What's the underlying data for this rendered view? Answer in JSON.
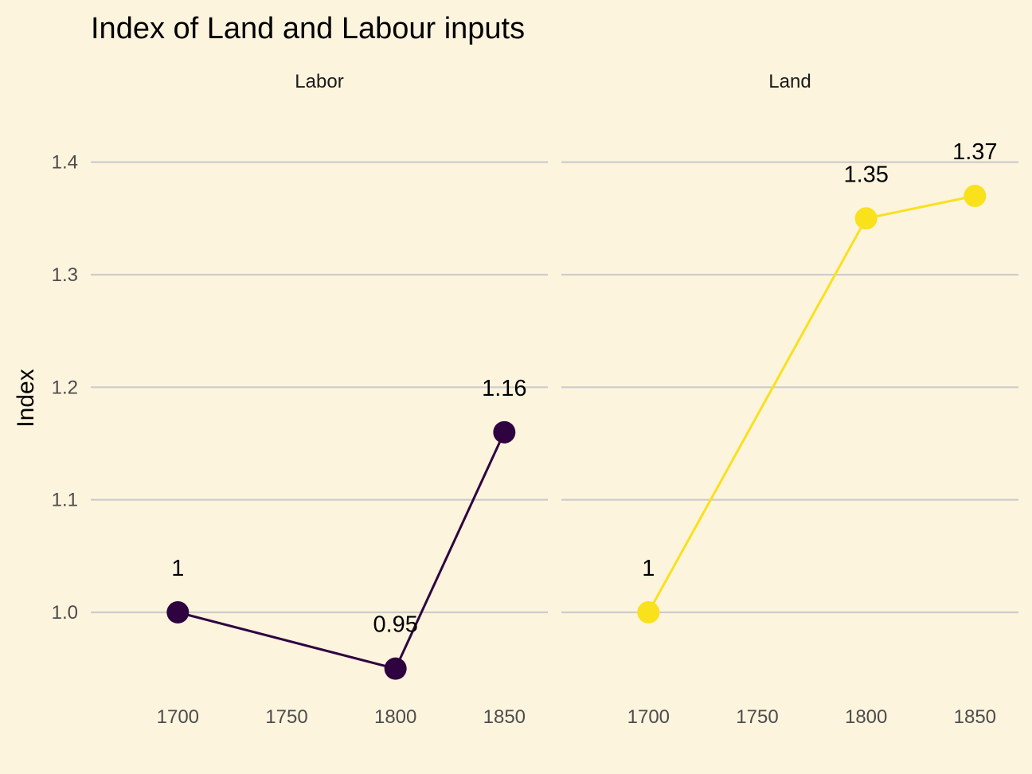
{
  "chart_data": {
    "type": "line",
    "title": "Index of Land and Labour inputs",
    "xlabel": "",
    "ylabel": "Index",
    "x_ticks": [
      1700,
      1750,
      1800,
      1850
    ],
    "xlim": [
      1660,
      1870
    ],
    "y_ticks": [
      1.0,
      1.1,
      1.2,
      1.3,
      1.4
    ],
    "y_tick_labels": [
      "1.0",
      "1.1",
      "1.2",
      "1.3",
      "1.4"
    ],
    "ylim": [
      0.925,
      1.445
    ],
    "grid": "horizontal-major",
    "legend": "none",
    "facets": [
      {
        "name": "Labor",
        "color": "#2e0340",
        "x": [
          1700,
          1800,
          1850
        ],
        "y": [
          1.0,
          0.95,
          1.16
        ],
        "labels": [
          "1",
          "0.95",
          "1.16"
        ]
      },
      {
        "name": "Land",
        "color": "#f9e11c",
        "x": [
          1700,
          1800,
          1850
        ],
        "y": [
          1.0,
          1.35,
          1.37
        ],
        "labels": [
          "1",
          "1.35",
          "1.37"
        ]
      }
    ]
  }
}
